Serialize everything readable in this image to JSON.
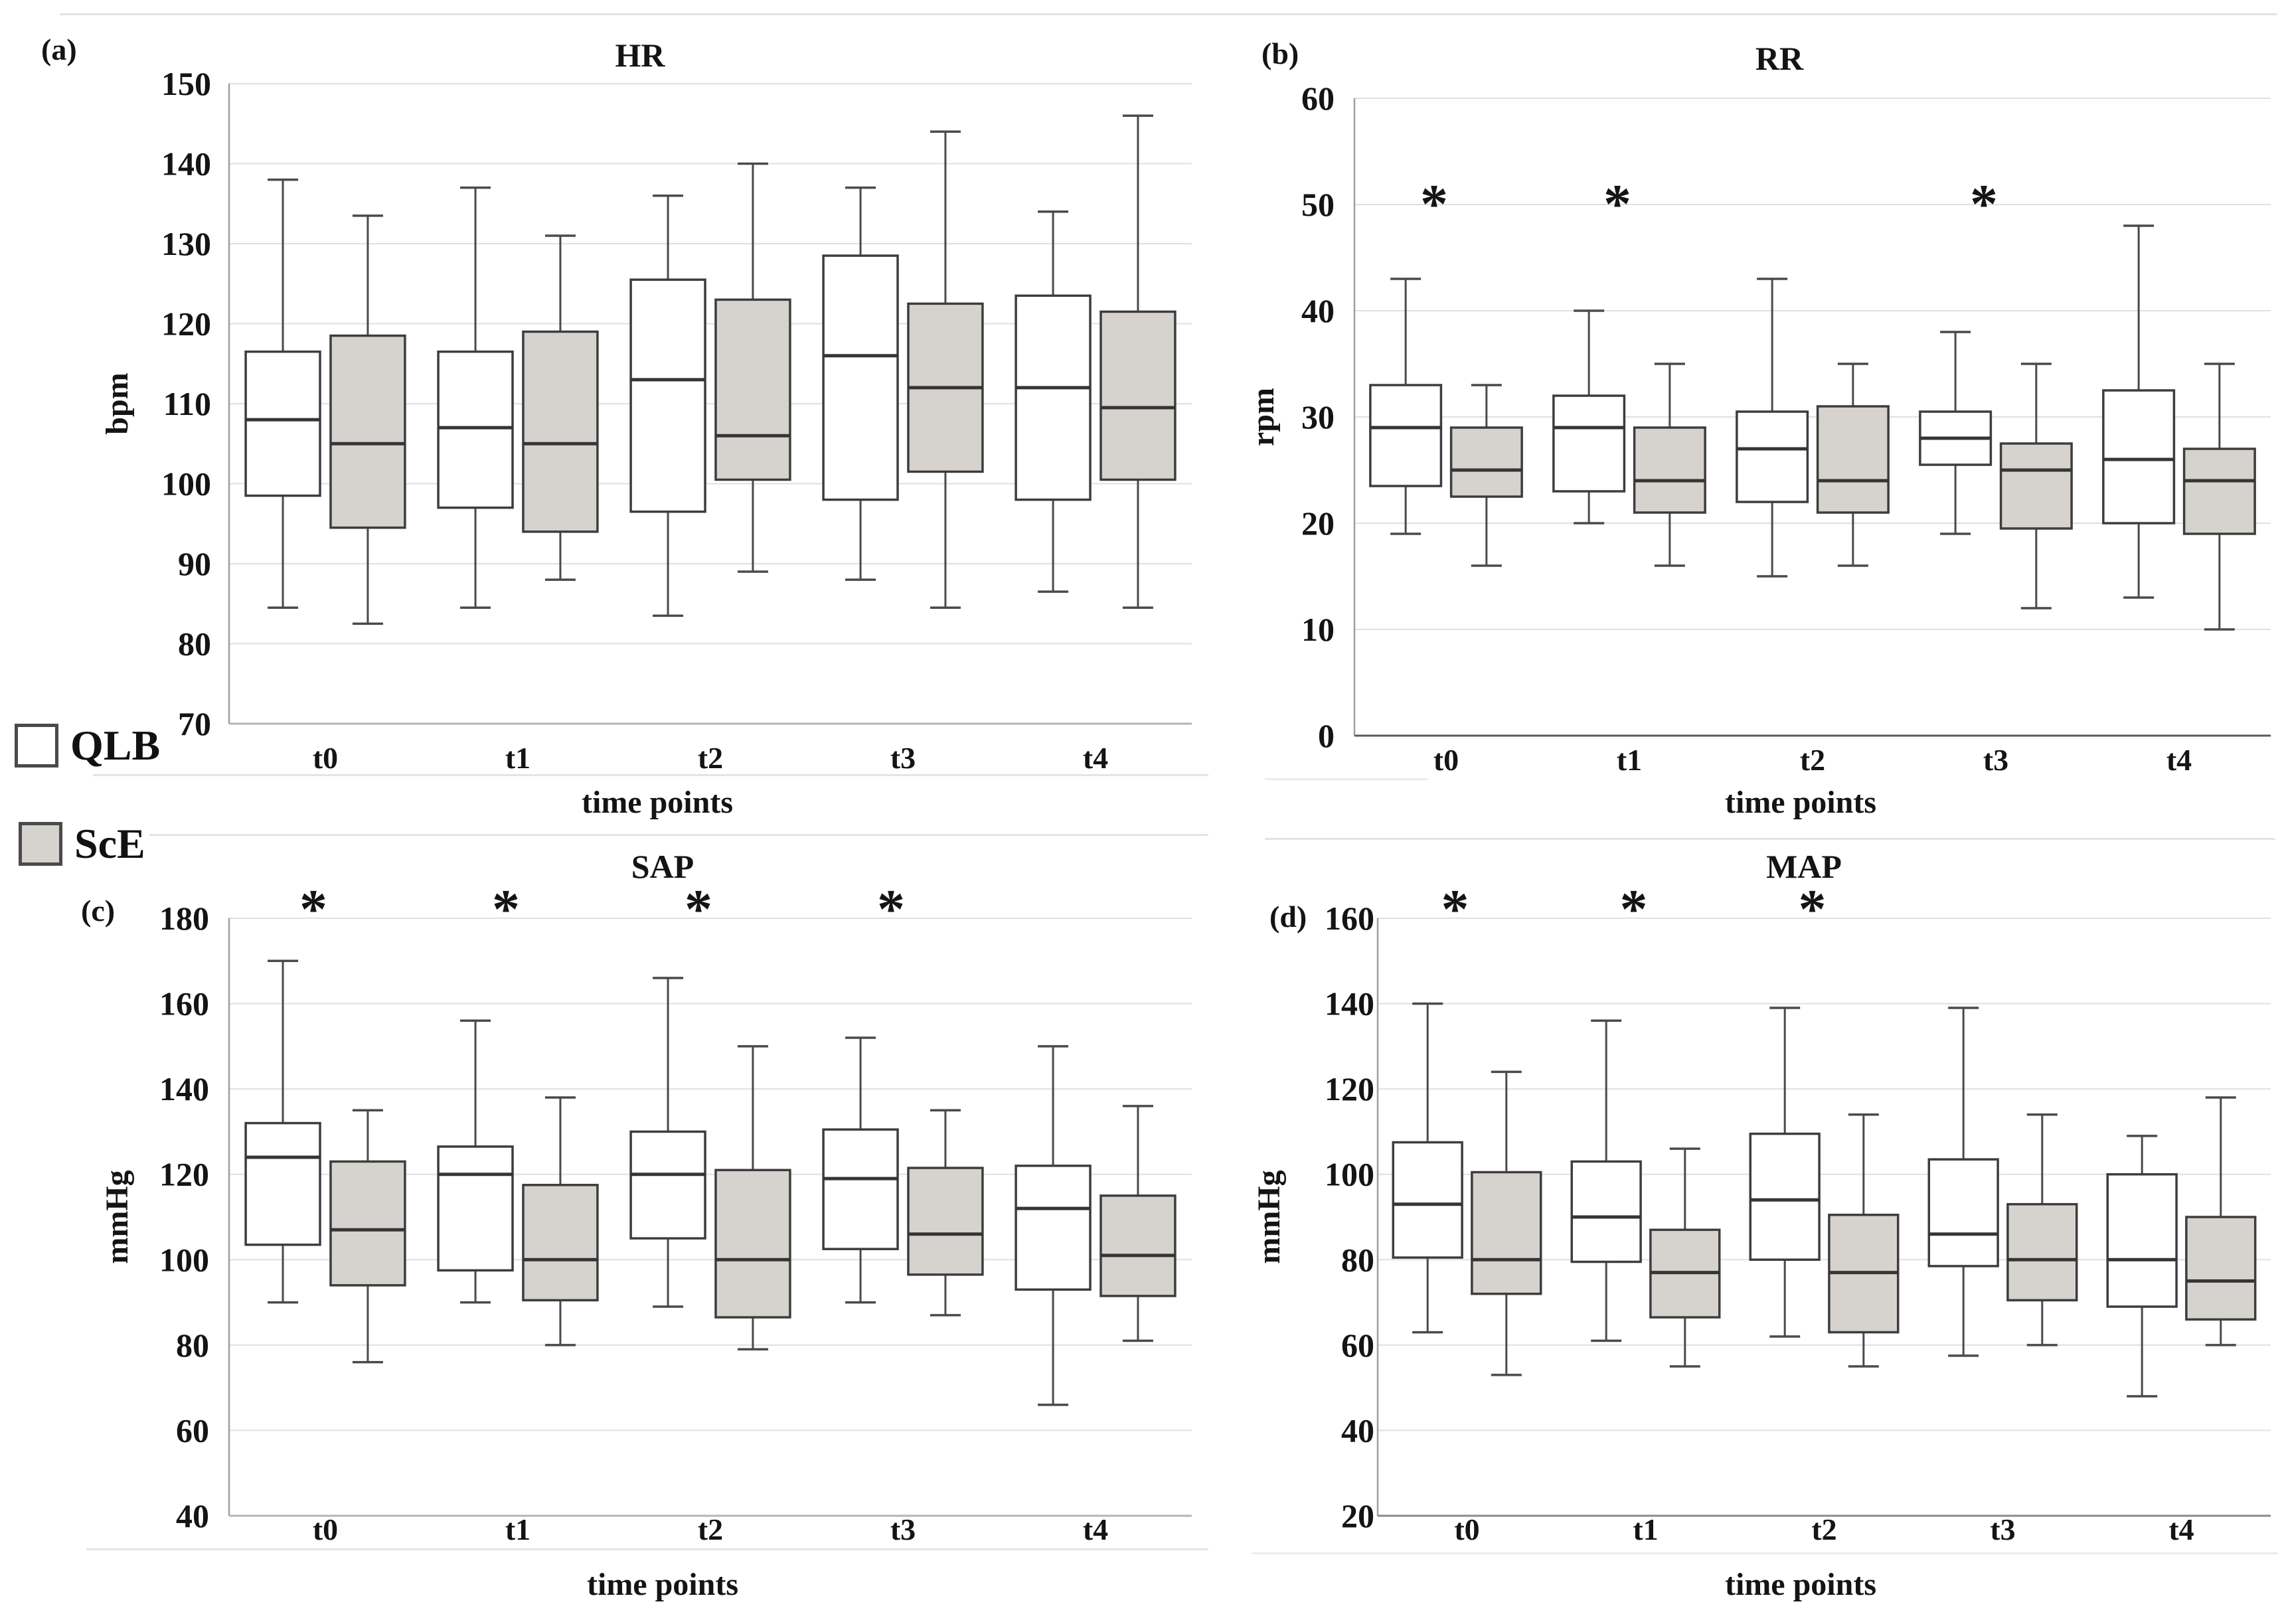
{
  "figure": {
    "legend": [
      {
        "label": "QLB",
        "fill": "#ffffff"
      },
      {
        "label": "ScE",
        "fill": "#d6d3ce"
      }
    ],
    "sig_marker": "*",
    "colors": {
      "box_border": "#3d3d3d",
      "whisker": "#4a4a4a",
      "gridline": "#e0e0e0",
      "axis": "#9e9e9e",
      "text": "#141414",
      "sce_fill": "#d6d3ce",
      "qlb_fill": "#ffffff"
    }
  },
  "chart_data": [
    {
      "id": "hr",
      "type": "box",
      "panel_label": "(a)",
      "title": "HR",
      "ylabel": "bpm",
      "xlabel": "time points",
      "ylim": [
        70,
        150
      ],
      "ytick_step": 10,
      "grid": true,
      "categories": [
        "t0",
        "t1",
        "t2",
        "t3",
        "t4"
      ],
      "box_values_order": [
        "min",
        "q1",
        "median",
        "q3",
        "max"
      ],
      "series": [
        {
          "name": "QLB",
          "fill": "#ffffff",
          "boxes": [
            [
              84.5,
              98.5,
              108,
              116.5,
              138
            ],
            [
              84.5,
              97,
              107,
              116.5,
              137
            ],
            [
              83.5,
              96.5,
              113,
              125.5,
              136
            ],
            [
              88,
              98,
              116,
              128.5,
              137
            ],
            [
              86.5,
              98,
              112,
              123.5,
              134
            ]
          ]
        },
        {
          "name": "ScE",
          "fill": "#d6d3ce",
          "boxes": [
            [
              82.5,
              94.5,
              105,
              118.5,
              133.5
            ],
            [
              88,
              94,
              105,
              119,
              131
            ],
            [
              89,
              100.5,
              106,
              123,
              140
            ],
            [
              84.5,
              101.5,
              112,
              122.5,
              144
            ],
            [
              84.5,
              100.5,
              109.5,
              121.5,
              146
            ]
          ]
        }
      ],
      "significance": []
    },
    {
      "id": "rr",
      "type": "box",
      "panel_label": "(b)",
      "title": "RR",
      "ylabel": "rpm",
      "xlabel": "time points",
      "ylim": [
        0,
        60
      ],
      "ytick_step": 10,
      "grid": true,
      "categories": [
        "t0",
        "t1",
        "t2",
        "t3",
        "t4"
      ],
      "box_values_order": [
        "min",
        "q1",
        "median",
        "q3",
        "max"
      ],
      "series": [
        {
          "name": "QLB",
          "fill": "#ffffff",
          "boxes": [
            [
              19,
              23.5,
              29,
              33,
              43
            ],
            [
              20,
              23,
              29,
              32,
              40
            ],
            [
              15,
              22,
              27,
              30.5,
              43
            ],
            [
              19,
              25.5,
              28,
              30.5,
              38
            ],
            [
              13,
              20,
              26,
              32.5,
              48
            ]
          ]
        },
        {
          "name": "ScE",
          "fill": "#d6d3ce",
          "boxes": [
            [
              16,
              22.5,
              25,
              29,
              33
            ],
            [
              16,
              21,
              24,
              29,
              35
            ],
            [
              16,
              21,
              24,
              31,
              35
            ],
            [
              12,
              19.5,
              25,
              27.5,
              35
            ],
            [
              10,
              19,
              24,
              27,
              35
            ]
          ]
        }
      ],
      "significance": [
        "t0",
        "t1",
        "t3"
      ]
    },
    {
      "id": "sap",
      "type": "box",
      "panel_label": "(c)",
      "title": "SAP",
      "ylabel": "mmHg",
      "xlabel": "time points",
      "ylim": [
        40,
        180
      ],
      "ytick_step": 20,
      "grid": true,
      "categories": [
        "t0",
        "t1",
        "t2",
        "t3",
        "t4"
      ],
      "box_values_order": [
        "min",
        "q1",
        "median",
        "q3",
        "max"
      ],
      "series": [
        {
          "name": "QLB",
          "fill": "#ffffff",
          "boxes": [
            [
              90,
              103.5,
              124,
              132,
              170
            ],
            [
              90,
              97.5,
              120,
              126.5,
              156
            ],
            [
              89,
              105,
              120,
              130,
              166
            ],
            [
              90,
              102.5,
              119,
              130.5,
              152
            ],
            [
              66,
              93,
              112,
              122,
              150
            ]
          ]
        },
        {
          "name": "ScE",
          "fill": "#d6d3ce",
          "boxes": [
            [
              76,
              94,
              107,
              123,
              135
            ],
            [
              80,
              90.5,
              100,
              117.5,
              138
            ],
            [
              79,
              86.5,
              100,
              121,
              150
            ],
            [
              87,
              96.5,
              106,
              121.5,
              135
            ],
            [
              81,
              91.5,
              101,
              115,
              136
            ]
          ]
        }
      ],
      "significance": [
        "t0",
        "t1",
        "t2",
        "t3"
      ]
    },
    {
      "id": "map",
      "type": "box",
      "panel_label": "(d)",
      "title": "MAP",
      "ylabel": "mmHg",
      "xlabel": "time points",
      "ylim": [
        20,
        160
      ],
      "ytick_step": 20,
      "grid": true,
      "categories": [
        "t0",
        "t1",
        "t2",
        "t3",
        "t4"
      ],
      "box_values_order": [
        "min",
        "q1",
        "median",
        "q3",
        "max"
      ],
      "series": [
        {
          "name": "QLB",
          "fill": "#ffffff",
          "boxes": [
            [
              63,
              80.5,
              93,
              107.5,
              140
            ],
            [
              61,
              79.5,
              90,
              103,
              136
            ],
            [
              62,
              80,
              94,
              109.5,
              139
            ],
            [
              57.5,
              78.5,
              86,
              103.5,
              139
            ],
            [
              48,
              69,
              80,
              100,
              109
            ]
          ]
        },
        {
          "name": "ScE",
          "fill": "#d6d3ce",
          "boxes": [
            [
              53,
              72,
              80,
              100.5,
              124
            ],
            [
              55,
              66.5,
              77,
              87,
              106
            ],
            [
              55,
              63,
              77,
              90.5,
              114
            ],
            [
              60,
              70.5,
              80,
              93,
              114
            ],
            [
              60,
              66,
              75,
              90,
              118
            ]
          ]
        }
      ],
      "significance": [
        "t0",
        "t1",
        "t2"
      ]
    }
  ]
}
